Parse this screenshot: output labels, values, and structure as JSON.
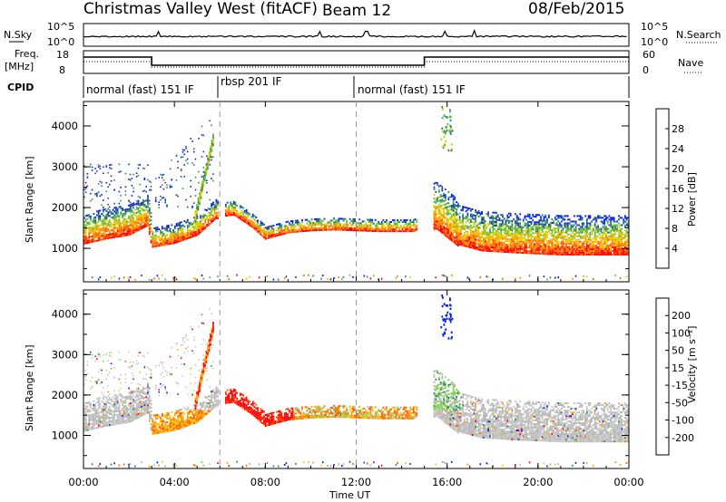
{
  "header": {
    "title": "Christmas Valley West (fitACF)",
    "beam": "Beam 12",
    "date": "08/Feb/2015"
  },
  "panel_top": {
    "left_label_1": "N.Sky",
    "left_ticks": [
      "10^5",
      "10^0"
    ],
    "right_ticks": [
      "10^5",
      "10^0"
    ],
    "right_label": "N.Search"
  },
  "panel_freq": {
    "left_label_1": "Freq.",
    "left_label_2": "[MHz]",
    "left_ticks": [
      "18",
      "8"
    ],
    "right_ticks": [
      "60",
      "0"
    ],
    "right_label": "Nave"
  },
  "cpid": {
    "label": "CPID",
    "segments": [
      {
        "text": "normal (fast) 151 IF",
        "start_hour": 0
      },
      {
        "text": "rbsp 201 IF",
        "start_hour": 6
      },
      {
        "text": "normal (fast) 151 IF",
        "start_hour": 12
      }
    ]
  },
  "colors": {
    "power": [
      "#0018ff",
      "#1e3ea8",
      "#2e8b57",
      "#5cb85c",
      "#c8d400",
      "#ffbf00",
      "#ff8c00",
      "#ff5a00",
      "#ff0000"
    ],
    "velocity": [
      "#ff0000",
      "#ff5a00",
      "#ff9a00",
      "#f0c800",
      "#c8c8c8",
      "#b4b4b4",
      "#7cd24a",
      "#2e8b57",
      "#1e3ea8",
      "#0018ff"
    ]
  },
  "chart_data": [
    {
      "type": "heatmap",
      "title": "Power",
      "xlabel": "Time UT",
      "ylabel": "Slant Range [km]",
      "x_ticks": [
        "00:00",
        "04:00",
        "08:00",
        "12:00",
        "16:00",
        "20:00",
        "00:00"
      ],
      "xlim_hours": [
        0,
        24
      ],
      "y_ticks": [
        "1000",
        "2000",
        "3000",
        "4000"
      ],
      "ylim": [
        180,
        4600
      ],
      "colorbar": {
        "label": "Power [dB]",
        "ticks": [
          "4",
          "8",
          "12",
          "16",
          "20",
          "24",
          "28"
        ],
        "range": [
          0,
          30
        ]
      },
      "profile_center_km": [
        [
          0,
          1300
        ],
        [
          1,
          1430
        ],
        [
          2,
          1520
        ],
        [
          2.8,
          1750
        ],
        [
          3.0,
          1150
        ],
        [
          4.0,
          1250
        ],
        [
          5.0,
          1450
        ],
        [
          5.8,
          1850
        ],
        [
          6.6,
          1900
        ],
        [
          7.4,
          1600
        ],
        [
          8.0,
          1300
        ],
        [
          9.0,
          1450
        ],
        [
          10.0,
          1500
        ],
        [
          11.0,
          1520
        ],
        [
          12.0,
          1500
        ],
        [
          13.0,
          1480
        ],
        [
          14.5,
          1480
        ],
        [
          15.5,
          1800
        ],
        [
          16.5,
          1350
        ],
        [
          17.5,
          1200
        ],
        [
          19.0,
          1150
        ],
        [
          21.0,
          1100
        ],
        [
          24.0,
          1100
        ]
      ]
    },
    {
      "type": "heatmap",
      "title": "Velocity",
      "xlabel": "Time UT",
      "ylabel": "Slant Range [km]",
      "x_ticks": [
        "00:00",
        "04:00",
        "08:00",
        "12:00",
        "16:00",
        "20:00",
        "00:00"
      ],
      "xlim_hours": [
        0,
        24
      ],
      "y_ticks": [
        "1000",
        "2000",
        "3000",
        "4000"
      ],
      "ylim": [
        180,
        4600
      ],
      "colorbar": {
        "label": "Velocity [m s⁻¹]",
        "ticks": [
          "200",
          "100",
          "50",
          "15",
          "-15",
          "-50",
          "-100",
          "-200"
        ],
        "range": [
          -250,
          250
        ]
      }
    }
  ]
}
